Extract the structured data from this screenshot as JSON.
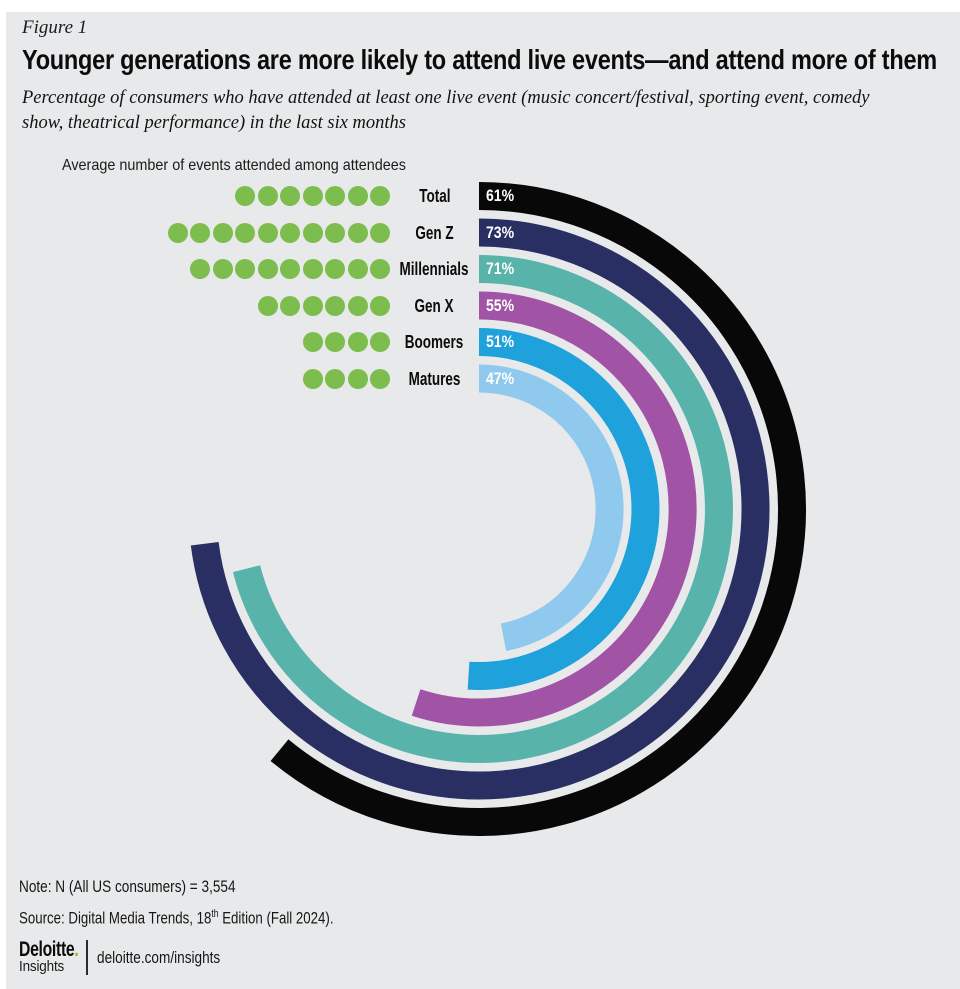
{
  "header": {
    "figure_label": "Figure 1",
    "title": "Younger generations are more likely to attend live events—and attend more of them",
    "subtitle": "Percentage of consumers who have attended at least one live event (music concert/festival, sporting event, comedy show, theatrical performance) in the last six months"
  },
  "chart_data": {
    "type": "radial-bar",
    "title": "Younger generations are more likely to attend live events—and attend more of them",
    "legend": "Average number of events attended among attendees",
    "categories": [
      "Total",
      "Gen Z",
      "Millennials",
      "Gen X",
      "Boomers",
      "Matures"
    ],
    "series": [
      {
        "name": "Attended at least one live event in the last six months",
        "unit": "%",
        "values": [
          61,
          73,
          71,
          55,
          51,
          47
        ]
      },
      {
        "name": "Average number of events attended among attendees",
        "unit": "events",
        "values": [
          7,
          10,
          9,
          6,
          4,
          4
        ]
      }
    ],
    "value_labels": [
      "61%",
      "73%",
      "71%",
      "55%",
      "51%",
      "47%"
    ],
    "bar_colors": [
      "#080808",
      "#292f62",
      "#58b3aa",
      "#a153a5",
      "#1fa1dc",
      "#8fc9ed"
    ],
    "dot_color": "#7cbd4d",
    "start_angle": "top",
    "direction": "clockwise",
    "sweep_mapping": "percent_of_360_degrees"
  },
  "footer": {
    "note": "Note: N (All US consumers) = 3,554",
    "source_prefix": "Source: Digital Media Trends, 18",
    "source_sup": "th",
    "source_suffix": " Edition (Fall 2024).",
    "logo": {
      "name": "Deloitte",
      "dot": ".",
      "sub": "Insights"
    },
    "site": "deloitte.com/insights"
  },
  "colors": {
    "background": "#e8e9ea",
    "page": "#ffffff",
    "text": "#111111",
    "deloitte_green": "#86bc25"
  }
}
